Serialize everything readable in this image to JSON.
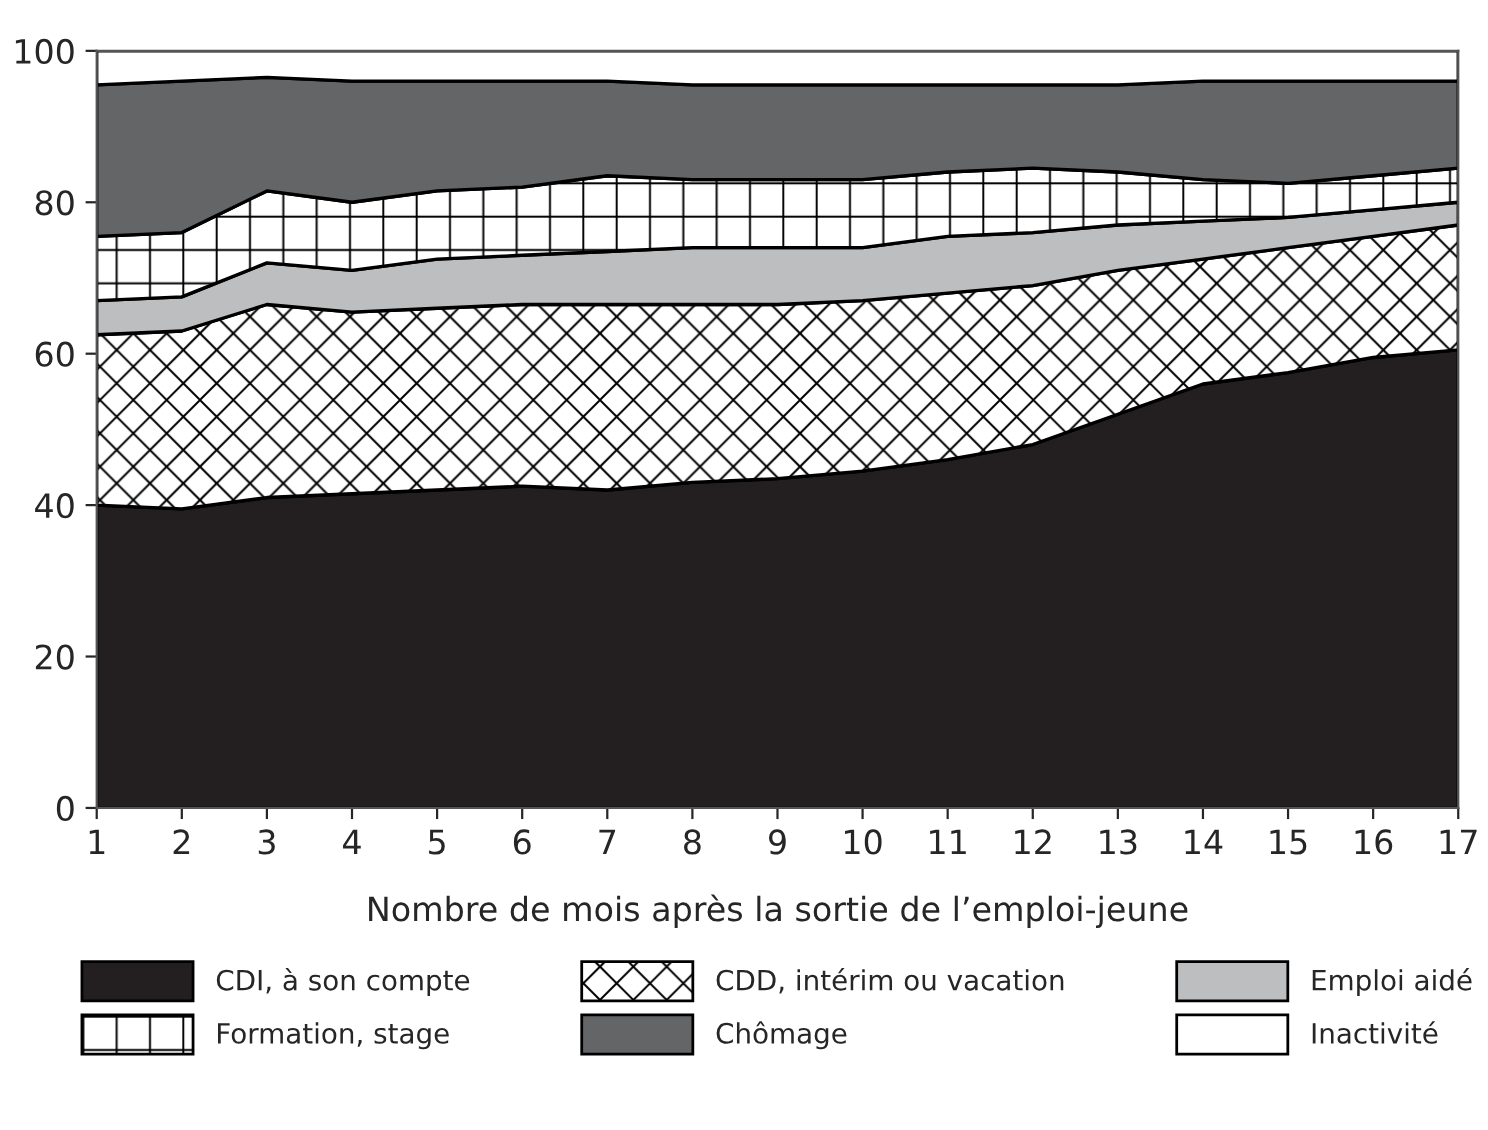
{
  "chart_data": {
    "type": "area",
    "stacked": true,
    "xlabel": "Nombre de mois après la sortie de l’emploi-jeune",
    "x": [
      1,
      2,
      3,
      4,
      5,
      6,
      7,
      8,
      9,
      10,
      11,
      12,
      13,
      14,
      15,
      16,
      17
    ],
    "xlim": [
      1,
      17
    ],
    "xticks": [
      1,
      2,
      3,
      4,
      5,
      6,
      7,
      8,
      9,
      10,
      11,
      12,
      13,
      14,
      15,
      16,
      17
    ],
    "ylim": [
      0,
      100
    ],
    "yticks": [
      0,
      20,
      40,
      60,
      80,
      100
    ],
    "legend": "bottom",
    "series": [
      {
        "name": "CDI, à son compte",
        "color": "#231f20",
        "values": [
          40,
          39.5,
          41,
          41.5,
          42,
          42.5,
          42,
          43,
          43.5,
          44.5,
          46,
          48,
          52,
          56,
          57.5,
          59.5,
          60.5
        ]
      },
      {
        "name": "CDD, intérim ou vacation",
        "color": "#000000",
        "values": [
          22.5,
          23.5,
          25.5,
          24,
          24,
          24,
          24.5,
          23.5,
          23,
          22.5,
          22,
          21,
          19,
          16.5,
          16.5,
          16,
          16.5
        ]
      },
      {
        "name": "Emploi aidé",
        "color": "#bcbec0",
        "values": [
          4.5,
          4.5,
          5.5,
          5.5,
          6.5,
          6.5,
          7,
          7.5,
          7.5,
          7,
          7.5,
          7,
          6,
          5,
          4,
          3.5,
          3
        ]
      },
      {
        "name": "Formation, stage",
        "color": "#000000",
        "values": [
          8.5,
          8.5,
          9.5,
          9,
          9,
          9,
          10,
          9,
          9,
          9,
          8.5,
          8.5,
          7,
          5.5,
          4.5,
          4.5,
          4.5
        ]
      },
      {
        "name": "Chômage",
        "color": "#646567",
        "values": [
          20,
          20,
          15,
          16,
          14.5,
          14,
          12.5,
          12.5,
          12.5,
          12.5,
          11.5,
          11,
          11.5,
          13,
          13.5,
          12.5,
          11.5
        ]
      },
      {
        "name": "Inactivité",
        "color": "#ffffff",
        "values": [
          4.5,
          4,
          3.5,
          4,
          4,
          4,
          4,
          4.5,
          4.5,
          4.5,
          4.5,
          4.5,
          4.5,
          4,
          4,
          4,
          4
        ]
      }
    ]
  }
}
